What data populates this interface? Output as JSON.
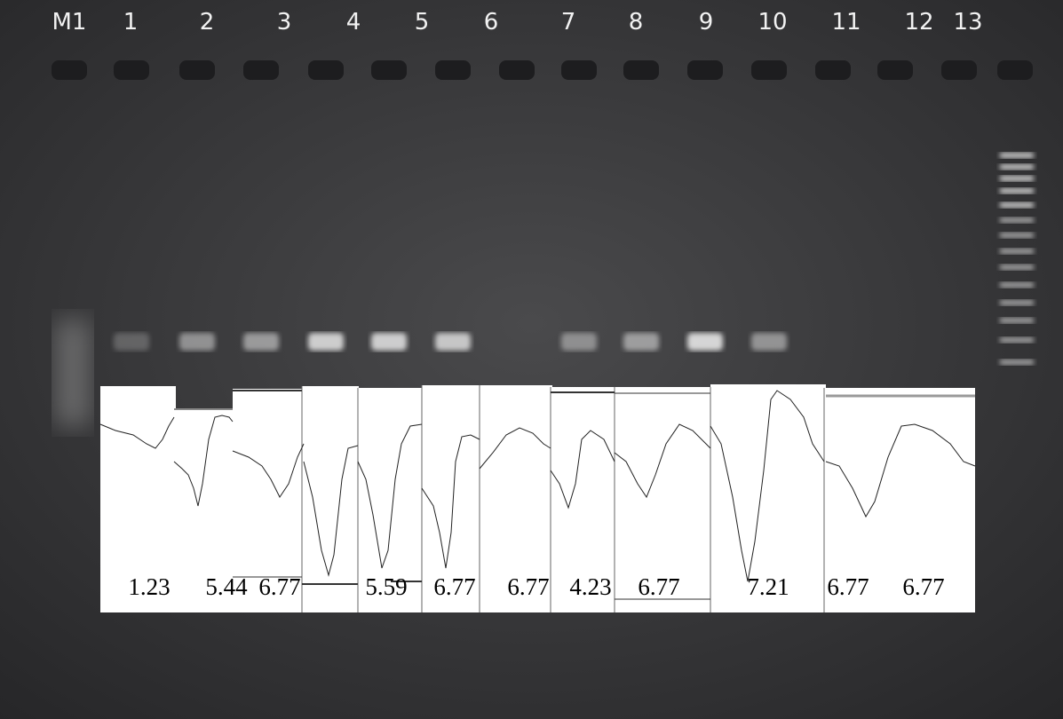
{
  "lane_labels": [
    "M1",
    "1",
    "2",
    "3",
    "4",
    "5",
    "6",
    "7",
    "8",
    "9",
    "10",
    "11",
    "12",
    "13"
  ],
  "peak_values": [
    1.23,
    5.44,
    6.77,
    5.59,
    6.77,
    6.77,
    4.23,
    6.77,
    7.21,
    6.77,
    6.77
  ]
}
